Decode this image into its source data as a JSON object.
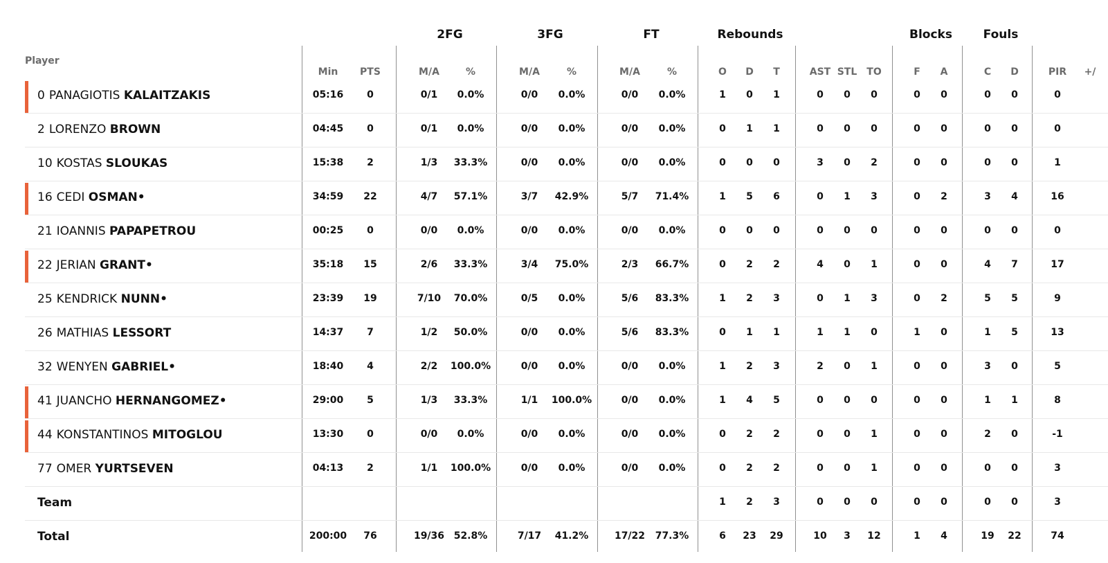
{
  "group_headers": {
    "fg2": "2FG",
    "fg3": "3FG",
    "ft": "FT",
    "rebounds": "Rebounds",
    "blocks": "Blocks",
    "fouls": "Fouls"
  },
  "player_label": "Player",
  "columns": [
    {
      "key": "min",
      "label": "Min"
    },
    {
      "key": "pts",
      "label": "PTS"
    },
    {
      "key": "fg2_ma",
      "label": "M/A"
    },
    {
      "key": "fg2_pct",
      "label": "%"
    },
    {
      "key": "fg3_ma",
      "label": "M/A"
    },
    {
      "key": "fg3_pct",
      "label": "%"
    },
    {
      "key": "ft_ma",
      "label": "M/A"
    },
    {
      "key": "ft_pct",
      "label": "%"
    },
    {
      "key": "reb_o",
      "label": "O"
    },
    {
      "key": "reb_d",
      "label": "D"
    },
    {
      "key": "reb_t",
      "label": "T"
    },
    {
      "key": "ast",
      "label": "AST"
    },
    {
      "key": "stl",
      "label": "STL"
    },
    {
      "key": "to",
      "label": "TO"
    },
    {
      "key": "blk_f",
      "label": "F"
    },
    {
      "key": "blk_a",
      "label": "A"
    },
    {
      "key": "foul_c",
      "label": "C"
    },
    {
      "key": "foul_d",
      "label": "D"
    },
    {
      "key": "pir",
      "label": "PIR"
    },
    {
      "key": "pm",
      "label": "+/"
    }
  ],
  "colors": {
    "starter_bar": "#e8623a",
    "divider": "#8f8f8f",
    "row_separator": "#e8e8e8",
    "subheader": "#6b6b6b"
  },
  "rows": [
    {
      "number": "0",
      "first": "PANAGIOTIS",
      "last": "KALAITZAKIS",
      "suffix": "",
      "starter": true,
      "min": "05:16",
      "pts": "0",
      "fg2_ma": "0/1",
      "fg2_pct": "0.0%",
      "fg3_ma": "0/0",
      "fg3_pct": "0.0%",
      "ft_ma": "0/0",
      "ft_pct": "0.0%",
      "reb_o": "1",
      "reb_d": "0",
      "reb_t": "1",
      "ast": "0",
      "stl": "0",
      "to": "0",
      "blk_f": "0",
      "blk_a": "0",
      "foul_c": "0",
      "foul_d": "0",
      "pir": "0",
      "pm": ""
    },
    {
      "number": "2",
      "first": "LORENZO",
      "last": "BROWN",
      "suffix": "",
      "starter": false,
      "min": "04:45",
      "pts": "0",
      "fg2_ma": "0/1",
      "fg2_pct": "0.0%",
      "fg3_ma": "0/0",
      "fg3_pct": "0.0%",
      "ft_ma": "0/0",
      "ft_pct": "0.0%",
      "reb_o": "0",
      "reb_d": "1",
      "reb_t": "1",
      "ast": "0",
      "stl": "0",
      "to": "0",
      "blk_f": "0",
      "blk_a": "0",
      "foul_c": "0",
      "foul_d": "0",
      "pir": "0",
      "pm": ""
    },
    {
      "number": "10",
      "first": "KOSTAS",
      "last": "SLOUKAS",
      "suffix": "",
      "starter": false,
      "min": "15:38",
      "pts": "2",
      "fg2_ma": "1/3",
      "fg2_pct": "33.3%",
      "fg3_ma": "0/0",
      "fg3_pct": "0.0%",
      "ft_ma": "0/0",
      "ft_pct": "0.0%",
      "reb_o": "0",
      "reb_d": "0",
      "reb_t": "0",
      "ast": "3",
      "stl": "0",
      "to": "2",
      "blk_f": "0",
      "blk_a": "0",
      "foul_c": "0",
      "foul_d": "0",
      "pir": "1",
      "pm": ""
    },
    {
      "number": "16",
      "first": "CEDI",
      "last": "OSMAN",
      "suffix": "•",
      "starter": true,
      "min": "34:59",
      "pts": "22",
      "fg2_ma": "4/7",
      "fg2_pct": "57.1%",
      "fg3_ma": "3/7",
      "fg3_pct": "42.9%",
      "ft_ma": "5/7",
      "ft_pct": "71.4%",
      "reb_o": "1",
      "reb_d": "5",
      "reb_t": "6",
      "ast": "0",
      "stl": "1",
      "to": "3",
      "blk_f": "0",
      "blk_a": "2",
      "foul_c": "3",
      "foul_d": "4",
      "pir": "16",
      "pm": ""
    },
    {
      "number": "21",
      "first": "IOANNIS",
      "last": "PAPAPETROU",
      "suffix": "",
      "starter": false,
      "min": "00:25",
      "pts": "0",
      "fg2_ma": "0/0",
      "fg2_pct": "0.0%",
      "fg3_ma": "0/0",
      "fg3_pct": "0.0%",
      "ft_ma": "0/0",
      "ft_pct": "0.0%",
      "reb_o": "0",
      "reb_d": "0",
      "reb_t": "0",
      "ast": "0",
      "stl": "0",
      "to": "0",
      "blk_f": "0",
      "blk_a": "0",
      "foul_c": "0",
      "foul_d": "0",
      "pir": "0",
      "pm": ""
    },
    {
      "number": "22",
      "first": "JERIAN",
      "last": "GRANT",
      "suffix": "•",
      "starter": true,
      "min": "35:18",
      "pts": "15",
      "fg2_ma": "2/6",
      "fg2_pct": "33.3%",
      "fg3_ma": "3/4",
      "fg3_pct": "75.0%",
      "ft_ma": "2/3",
      "ft_pct": "66.7%",
      "reb_o": "0",
      "reb_d": "2",
      "reb_t": "2",
      "ast": "4",
      "stl": "0",
      "to": "1",
      "blk_f": "0",
      "blk_a": "0",
      "foul_c": "4",
      "foul_d": "7",
      "pir": "17",
      "pm": ""
    },
    {
      "number": "25",
      "first": "KENDRICK",
      "last": "NUNN",
      "suffix": "•",
      "starter": false,
      "min": "23:39",
      "pts": "19",
      "fg2_ma": "7/10",
      "fg2_pct": "70.0%",
      "fg3_ma": "0/5",
      "fg3_pct": "0.0%",
      "ft_ma": "5/6",
      "ft_pct": "83.3%",
      "reb_o": "1",
      "reb_d": "2",
      "reb_t": "3",
      "ast": "0",
      "stl": "1",
      "to": "3",
      "blk_f": "0",
      "blk_a": "2",
      "foul_c": "5",
      "foul_d": "5",
      "pir": "9",
      "pm": ""
    },
    {
      "number": "26",
      "first": "MATHIAS",
      "last": "LESSORT",
      "suffix": "",
      "starter": false,
      "min": "14:37",
      "pts": "7",
      "fg2_ma": "1/2",
      "fg2_pct": "50.0%",
      "fg3_ma": "0/0",
      "fg3_pct": "0.0%",
      "ft_ma": "5/6",
      "ft_pct": "83.3%",
      "reb_o": "0",
      "reb_d": "1",
      "reb_t": "1",
      "ast": "1",
      "stl": "1",
      "to": "0",
      "blk_f": "1",
      "blk_a": "0",
      "foul_c": "1",
      "foul_d": "5",
      "pir": "13",
      "pm": ""
    },
    {
      "number": "32",
      "first": "WENYEN",
      "last": "GABRIEL",
      "suffix": "•",
      "starter": false,
      "min": "18:40",
      "pts": "4",
      "fg2_ma": "2/2",
      "fg2_pct": "100.0%",
      "fg3_ma": "0/0",
      "fg3_pct": "0.0%",
      "ft_ma": "0/0",
      "ft_pct": "0.0%",
      "reb_o": "1",
      "reb_d": "2",
      "reb_t": "3",
      "ast": "2",
      "stl": "0",
      "to": "1",
      "blk_f": "0",
      "blk_a": "0",
      "foul_c": "3",
      "foul_d": "0",
      "pir": "5",
      "pm": ""
    },
    {
      "number": "41",
      "first": "JUANCHO",
      "last": "HERNANGOMEZ",
      "suffix": "•",
      "starter": true,
      "min": "29:00",
      "pts": "5",
      "fg2_ma": "1/3",
      "fg2_pct": "33.3%",
      "fg3_ma": "1/1",
      "fg3_pct": "100.0%",
      "ft_ma": "0/0",
      "ft_pct": "0.0%",
      "reb_o": "1",
      "reb_d": "4",
      "reb_t": "5",
      "ast": "0",
      "stl": "0",
      "to": "0",
      "blk_f": "0",
      "blk_a": "0",
      "foul_c": "1",
      "foul_d": "1",
      "pir": "8",
      "pm": ""
    },
    {
      "number": "44",
      "first": "KONSTANTINOS",
      "last": "MITOGLOU",
      "suffix": "",
      "starter": true,
      "min": "13:30",
      "pts": "0",
      "fg2_ma": "0/0",
      "fg2_pct": "0.0%",
      "fg3_ma": "0/0",
      "fg3_pct": "0.0%",
      "ft_ma": "0/0",
      "ft_pct": "0.0%",
      "reb_o": "0",
      "reb_d": "2",
      "reb_t": "2",
      "ast": "0",
      "stl": "0",
      "to": "1",
      "blk_f": "0",
      "blk_a": "0",
      "foul_c": "2",
      "foul_d": "0",
      "pir": "-1",
      "pm": ""
    },
    {
      "number": "77",
      "first": "OMER",
      "last": "YURTSEVEN",
      "suffix": "",
      "starter": false,
      "min": "04:13",
      "pts": "2",
      "fg2_ma": "1/1",
      "fg2_pct": "100.0%",
      "fg3_ma": "0/0",
      "fg3_pct": "0.0%",
      "ft_ma": "0/0",
      "ft_pct": "0.0%",
      "reb_o": "0",
      "reb_d": "2",
      "reb_t": "2",
      "ast": "0",
      "stl": "0",
      "to": "1",
      "blk_f": "0",
      "blk_a": "0",
      "foul_c": "0",
      "foul_d": "0",
      "pir": "3",
      "pm": ""
    },
    {
      "label": "Team",
      "starter": false,
      "min": "",
      "pts": "",
      "fg2_ma": "",
      "fg2_pct": "",
      "fg3_ma": "",
      "fg3_pct": "",
      "ft_ma": "",
      "ft_pct": "",
      "reb_o": "1",
      "reb_d": "2",
      "reb_t": "3",
      "ast": "0",
      "stl": "0",
      "to": "0",
      "blk_f": "0",
      "blk_a": "0",
      "foul_c": "0",
      "foul_d": "0",
      "pir": "3",
      "pm": ""
    },
    {
      "label": "Total",
      "starter": false,
      "min": "200:00",
      "pts": "76",
      "fg2_ma": "19/36",
      "fg2_pct": "52.8%",
      "fg3_ma": "7/17",
      "fg3_pct": "41.2%",
      "ft_ma": "17/22",
      "ft_pct": "77.3%",
      "reb_o": "6",
      "reb_d": "23",
      "reb_t": "29",
      "ast": "10",
      "stl": "3",
      "to": "12",
      "blk_f": "1",
      "blk_a": "4",
      "foul_c": "19",
      "foul_d": "22",
      "pir": "74",
      "pm": ""
    }
  ]
}
